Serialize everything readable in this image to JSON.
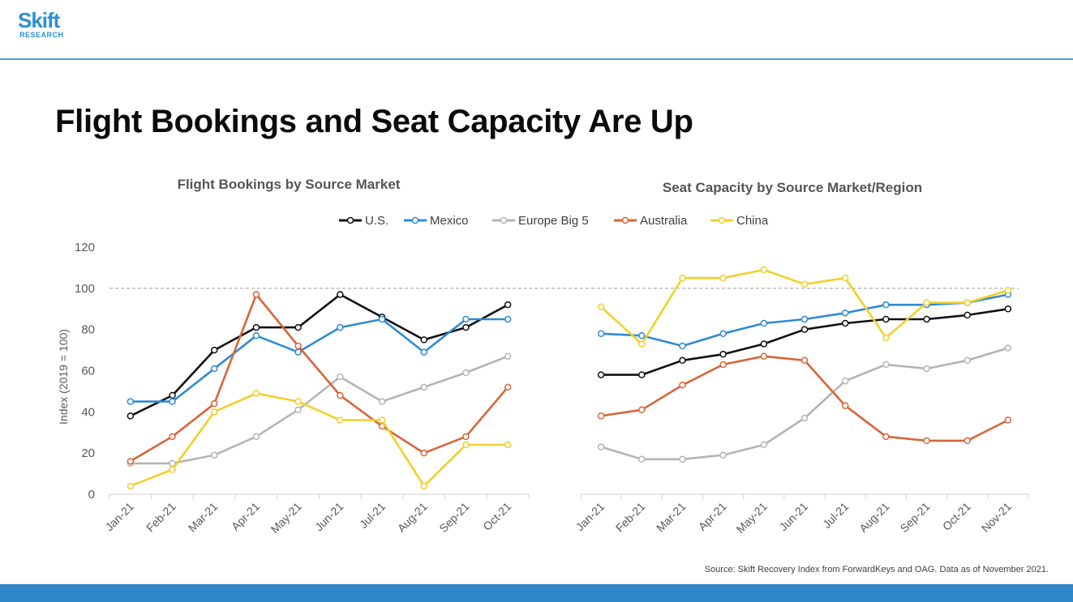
{
  "brand": {
    "name": "Skift",
    "sub": "RESEARCH"
  },
  "slide_title": "Flight Bookings and Seat Capacity Are Up",
  "source_note": "Source: Skift Recovery Index from ForwardKeys and OAG. Data as of November 2021.",
  "colors": {
    "accent": "#2f86c9",
    "us": "#111111",
    "mexico": "#2e8bd3",
    "europe": "#b4b4b4",
    "australia": "#d9643a",
    "china": "#f2d029"
  },
  "legend": [
    {
      "name": "U.S.",
      "color": "#111111"
    },
    {
      "name": "Mexico",
      "color": "#2e8bd3"
    },
    {
      "name": "Europe Big 5",
      "color": "#b4b4b4"
    },
    {
      "name": "Australia",
      "color": "#d9643a"
    },
    {
      "name": "China",
      "color": "#f2d029"
    }
  ],
  "chart_data": [
    {
      "type": "line",
      "title": "Flight Bookings by Source Market",
      "ylabel": "Index (2019 = 100)",
      "ylim": [
        0,
        120
      ],
      "yticks": [
        0,
        20,
        40,
        60,
        80,
        100,
        120
      ],
      "reference_line": 100,
      "categories": [
        "Jan-21",
        "Feb-21",
        "Mar-21",
        "Apr-21",
        "May-21",
        "Jun-21",
        "Jul-21",
        "Aug-21",
        "Sep-21",
        "Oct-21"
      ],
      "series": [
        {
          "name": "U.S.",
          "color": "#111111",
          "values": [
            38,
            48,
            70,
            81,
            81,
            97,
            86,
            75,
            81,
            92
          ]
        },
        {
          "name": "Mexico",
          "color": "#2e8bd3",
          "values": [
            45,
            45,
            61,
            77,
            69,
            81,
            85,
            69,
            85,
            85
          ]
        },
        {
          "name": "Europe Big 5",
          "color": "#b4b4b4",
          "values": [
            15,
            15,
            19,
            28,
            41,
            57,
            45,
            52,
            59,
            67
          ]
        },
        {
          "name": "Australia",
          "color": "#d9643a",
          "values": [
            16,
            28,
            44,
            97,
            72,
            48,
            33,
            20,
            28,
            52
          ]
        },
        {
          "name": "China",
          "color": "#f2d029",
          "values": [
            4,
            12,
            40,
            49,
            45,
            36,
            36,
            4,
            24,
            24
          ]
        }
      ]
    },
    {
      "type": "line",
      "title": "Seat Capacity by Source Market/Region",
      "ylim": [
        0,
        120
      ],
      "reference_line": 100,
      "categories": [
        "Jan-21",
        "Feb-21",
        "Mar-21",
        "Apr-21",
        "May-21",
        "Jun-21",
        "Jul-21",
        "Aug-21",
        "Sep-21",
        "Oct-21",
        "Nov-21"
      ],
      "series": [
        {
          "name": "U.S.",
          "color": "#111111",
          "values": [
            58,
            58,
            65,
            68,
            73,
            80,
            83,
            85,
            85,
            87,
            90
          ]
        },
        {
          "name": "Mexico",
          "color": "#2e8bd3",
          "values": [
            78,
            77,
            72,
            78,
            83,
            85,
            88,
            92,
            92,
            93,
            97
          ]
        },
        {
          "name": "Europe Big 5",
          "color": "#b4b4b4",
          "values": [
            23,
            17,
            17,
            19,
            24,
            37,
            55,
            63,
            61,
            65,
            71
          ]
        },
        {
          "name": "Australia",
          "color": "#d9643a",
          "values": [
            38,
            41,
            53,
            63,
            67,
            65,
            43,
            28,
            26,
            26,
            36
          ]
        },
        {
          "name": "China",
          "color": "#f2d029",
          "values": [
            91,
            73,
            105,
            105,
            109,
            102,
            105,
            76,
            93,
            93,
            99
          ]
        }
      ]
    }
  ]
}
